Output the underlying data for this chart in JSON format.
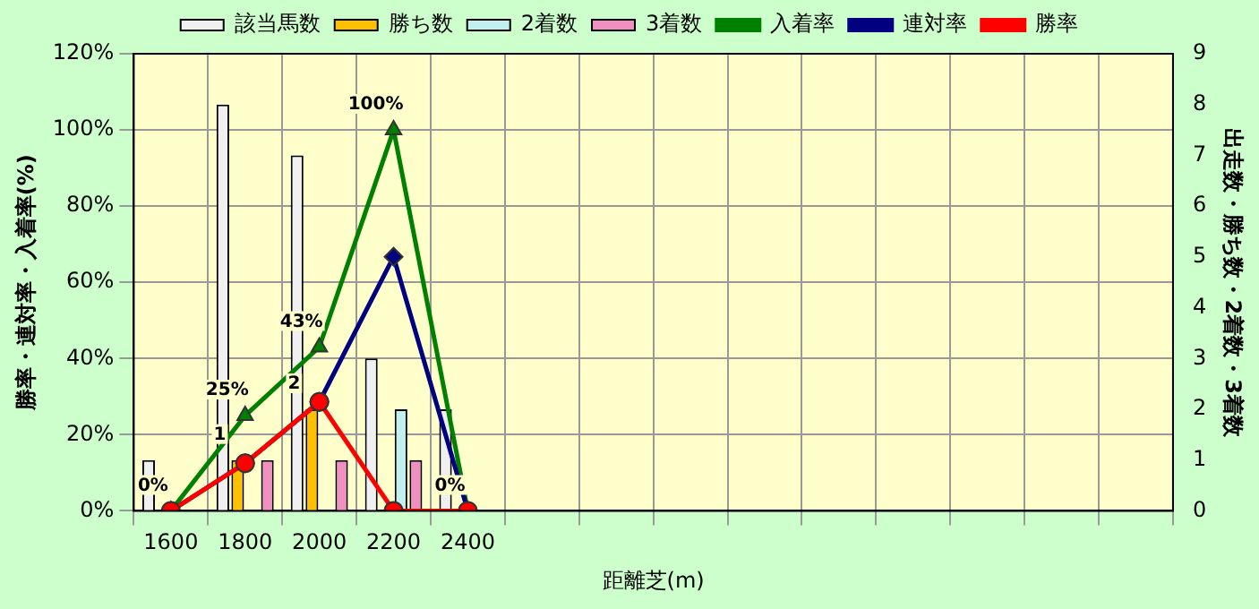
{
  "chart_data": {
    "type": "bar",
    "xlabel": "距離芝(m)",
    "ylabel": "勝率・連対率・入着率(%)",
    "y2label": "出走数・勝ち数・2着数・3着数",
    "categories": [
      "1600",
      "1800",
      "2000",
      "2200",
      "2400",
      null,
      null,
      null,
      null,
      null,
      null,
      null,
      null,
      null
    ],
    "series": [
      {
        "name": "該当馬数",
        "axis": "y2",
        "color": "#f0f0f0",
        "values": [
          1,
          8,
          7,
          3,
          2,
          null,
          null,
          null,
          null,
          null,
          null,
          null,
          null,
          null
        ]
      },
      {
        "name": "勝ち数",
        "axis": "y2",
        "color": "#ffc000",
        "values": [
          0,
          1,
          2,
          0,
          0,
          null,
          null,
          null,
          null,
          null,
          null,
          null,
          null,
          null
        ],
        "value_labels": [
          null,
          "1",
          "2",
          null,
          null,
          null,
          null,
          null,
          null,
          null,
          null,
          null,
          null,
          null
        ]
      },
      {
        "name": "2着数",
        "axis": "y2",
        "color": "#c0f0f0",
        "values": [
          0,
          0,
          0,
          2,
          0,
          null,
          null,
          null,
          null,
          null,
          null,
          null,
          null,
          null
        ]
      },
      {
        "name": "3着数",
        "axis": "y2",
        "color": "#f090c0",
        "values": [
          0,
          1,
          1,
          1,
          0,
          null,
          null,
          null,
          null,
          null,
          null,
          null,
          null,
          null
        ]
      },
      {
        "name": "入着率",
        "type": "line",
        "color": "#008000",
        "marker": "triangle",
        "values": [
          0,
          25,
          43,
          100,
          0,
          null,
          null,
          null,
          null,
          null,
          null,
          null,
          null,
          null
        ],
        "value_labels": [
          "0%",
          "25%",
          "43%",
          "100%",
          "0%",
          null,
          null,
          null,
          null,
          null,
          null,
          null,
          null,
          null
        ]
      },
      {
        "name": "連対率",
        "type": "line",
        "color": "#000080",
        "marker": "diamond",
        "values": [
          0,
          12.5,
          28.6,
          66.7,
          0,
          null,
          null,
          null,
          null,
          null,
          null,
          null,
          null,
          null
        ]
      },
      {
        "name": "勝率",
        "type": "line",
        "color": "#ff0000",
        "marker": "circle",
        "values": [
          0,
          12.5,
          28.6,
          0,
          0,
          null,
          null,
          null,
          null,
          null,
          null,
          null,
          null,
          null
        ]
      }
    ],
    "ylim": [
      0,
      120
    ],
    "yticks": [
      {
        "value": 0,
        "label": "0%"
      },
      {
        "value": 20,
        "label": "20%"
      },
      {
        "value": 40,
        "label": "40%"
      },
      {
        "value": 60,
        "label": "60%"
      },
      {
        "value": 80,
        "label": "80%"
      },
      {
        "value": 100,
        "label": "100%"
      },
      {
        "value": 120,
        "label": "120%"
      }
    ],
    "y2lim": [
      0,
      9
    ],
    "y2ticks": [
      0,
      1,
      2,
      3,
      4,
      5,
      6,
      7,
      8,
      9
    ],
    "grid": true,
    "legend": "top"
  }
}
